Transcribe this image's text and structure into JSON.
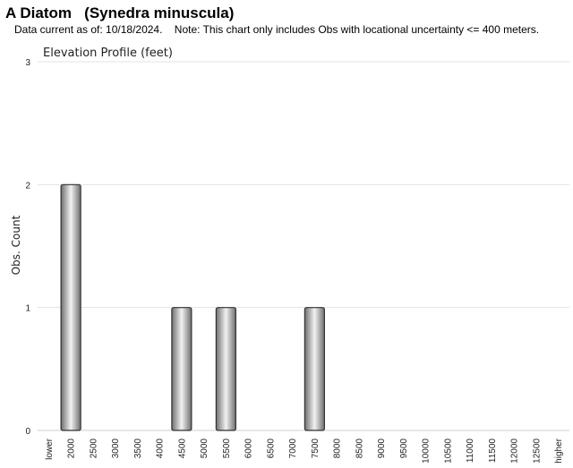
{
  "header": {
    "species_common": "A Diatom",
    "species_latin": "(Synedra minuscula)",
    "data_current": "Data current as of: 10/18/2024.",
    "note": "Note: This chart only includes Obs with locational uncertainty <= 400 meters."
  },
  "chart_data": {
    "type": "bar",
    "title": "Elevation Profile (feet)",
    "ylabel": "Obs. Count",
    "xlabel": "",
    "ylim": [
      0,
      3
    ],
    "yticks": [
      "0",
      "1",
      "2",
      "3"
    ],
    "grid": true,
    "categories": [
      "lower",
      "2000",
      "2500",
      "3000",
      "3500",
      "4000",
      "4500",
      "5000",
      "5500",
      "6000",
      "6500",
      "7000",
      "7500",
      "8000",
      "8500",
      "9000",
      "9500",
      "10000",
      "10500",
      "11000",
      "11500",
      "12000",
      "12500",
      "higher"
    ],
    "values": [
      0,
      2,
      0,
      0,
      0,
      0,
      1,
      0,
      1,
      0,
      0,
      0,
      1,
      0,
      0,
      0,
      0,
      0,
      0,
      0,
      0,
      0,
      0,
      0
    ],
    "colors": {
      "bar_dark": "#6e6e6e",
      "bar_light": "#f2f2f2",
      "bar_stroke": "#333333",
      "grid": "#e3e3e3"
    }
  }
}
